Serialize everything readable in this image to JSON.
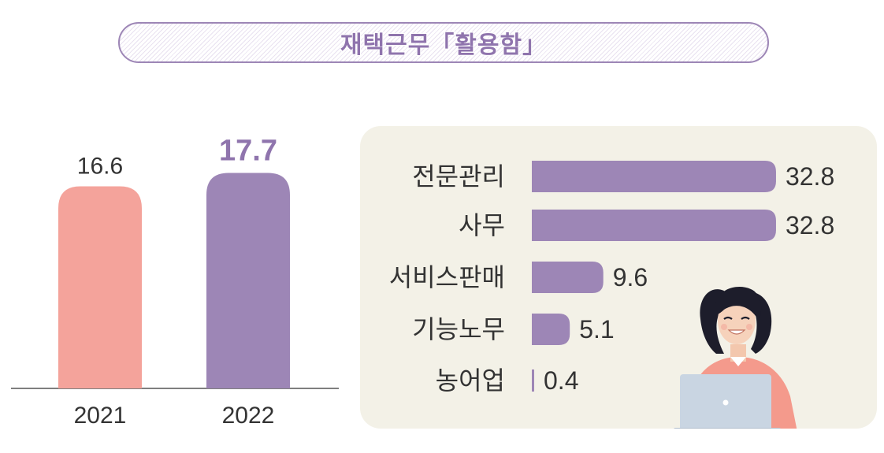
{
  "title": "재택근무「활용함」",
  "colors": {
    "bar_2021": "#f4a39b",
    "bar_2022": "#9d86b6",
    "text": "#333333",
    "panel_bg": "#f3f1e7",
    "accent": "#8f74ad"
  },
  "chart_data": [
    {
      "type": "bar",
      "orientation": "vertical",
      "categories": [
        "2021",
        "2022"
      ],
      "values": [
        16.6,
        17.7
      ],
      "value_labels": [
        "16.6",
        "17.7"
      ],
      "highlight_index": 1
    },
    {
      "type": "bar",
      "orientation": "horizontal",
      "categories": [
        "전문관리",
        "사무",
        "서비스판매",
        "기능노무",
        "농어업"
      ],
      "values": [
        32.8,
        32.8,
        9.6,
        5.1,
        0.4
      ],
      "value_labels": [
        "32.8",
        "32.8",
        "9.6",
        "5.1",
        "0.4"
      ]
    }
  ],
  "illustration": {
    "icon": "person-with-laptop-icon"
  }
}
